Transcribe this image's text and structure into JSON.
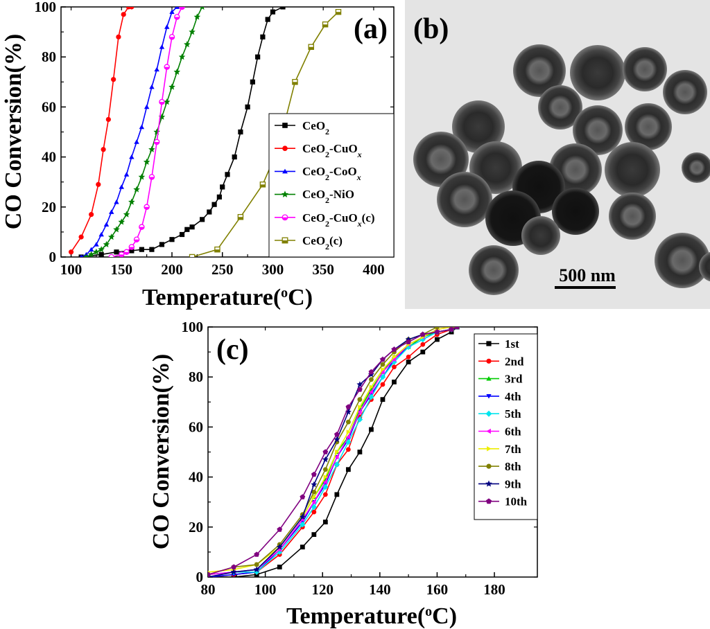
{
  "panel_labels": {
    "a": "(a)",
    "b": "(b)",
    "c": "(c)"
  },
  "axis_text": {
    "a_x_main": "Temperature(",
    "a_x_sup": "o",
    "a_x_end": "C)",
    "a_y": "CO Conversion(%)",
    "c_x_main": "Temperature(",
    "c_x_sup": "o",
    "c_x_end": "C)",
    "c_y": "CO Conversion(%)"
  },
  "legend_a": [
    {
      "base": "CeO",
      "sub": "2",
      "rest": "",
      "rest_italic": "",
      "tail": ""
    },
    {
      "base": "CeO",
      "sub": "2",
      "rest": "-CuO",
      "rest_italic": "x",
      "tail": ""
    },
    {
      "base": "CeO",
      "sub": "2",
      "rest": "-CoO",
      "rest_italic": "x",
      "tail": ""
    },
    {
      "base": "CeO",
      "sub": "2",
      "rest": "-NiO",
      "rest_italic": "",
      "tail": ""
    },
    {
      "base": "CeO",
      "sub": "2",
      "rest": "-CuO",
      "rest_italic": "x",
      "tail": "(c)"
    },
    {
      "base": "CeO",
      "sub": "2",
      "rest": "(c)",
      "rest_italic": "",
      "tail": ""
    }
  ],
  "scale_bar": {
    "label": "500 nm"
  },
  "colors": {
    "s1": "#000000",
    "s2": "#ff0000",
    "s3": "#0000ff",
    "s4": "#008000",
    "s5": "#ff00ff",
    "s6": "#808000",
    "c1": "#000000",
    "c2": "#ff0000",
    "c3": "#00cc00",
    "c4": "#0000ff",
    "c5": "#00e5ee",
    "c6": "#ff00ff",
    "c7": "#eeee00",
    "c8": "#808000",
    "c9": "#000080",
    "c10": "#800080"
  },
  "chart_data": [
    {
      "panel": "(a)",
      "type": "line",
      "xlabel": "Temperature(oC)",
      "ylabel": "CO Conversion(%)",
      "xlim": [
        90,
        420
      ],
      "ylim": [
        0,
        100
      ],
      "xticks": [
        100,
        150,
        200,
        250,
        300,
        350,
        400
      ],
      "yticks": [
        0,
        20,
        40,
        60,
        80,
        100
      ],
      "legend_position": "bottom-right",
      "series": [
        {
          "name": "CeO2",
          "marker": "square",
          "x": [
            110,
            130,
            145,
            160,
            170,
            180,
            190,
            200,
            210,
            215,
            220,
            230,
            237,
            242,
            247,
            250,
            255,
            262,
            268,
            275,
            280,
            285,
            290,
            295,
            300,
            310
          ],
          "y": [
            0,
            1,
            2,
            2.5,
            3,
            3,
            5,
            7,
            9,
            11,
            12,
            15,
            18,
            21,
            24,
            28,
            33,
            40,
            50,
            60,
            70,
            80,
            88,
            95,
            98,
            100
          ]
        },
        {
          "name": "CeO2-CuOx",
          "marker": "circle",
          "x": [
            100,
            110,
            120,
            127,
            132,
            137,
            142,
            147,
            152,
            157,
            160
          ],
          "y": [
            2,
            8,
            17,
            29,
            43,
            55,
            71,
            88,
            97,
            100,
            100
          ]
        },
        {
          "name": "CeO2-CoOx",
          "marker": "triangle",
          "x": [
            110,
            115,
            120,
            125,
            130,
            135,
            140,
            145,
            150,
            155,
            160,
            165,
            170,
            175,
            180,
            185,
            190,
            195,
            200,
            205
          ],
          "y": [
            0,
            1,
            3,
            5,
            9,
            13,
            18,
            22,
            28,
            33,
            40,
            46,
            52,
            60,
            68,
            75,
            84,
            92,
            98,
            100
          ]
        },
        {
          "name": "CeO2-NiO",
          "marker": "star",
          "x": [
            115,
            120,
            125,
            130,
            135,
            140,
            145,
            150,
            155,
            160,
            165,
            170,
            175,
            180,
            185,
            190,
            195,
            200,
            205,
            210,
            215,
            220,
            225,
            230
          ],
          "y": [
            0,
            1,
            2,
            3,
            5,
            8,
            11,
            14,
            17,
            22,
            27,
            32,
            38,
            43,
            50,
            56,
            62,
            68,
            74,
            80,
            85,
            90,
            96,
            100
          ]
        },
        {
          "name": "CeO2-CuOx(c)",
          "marker": "half-circle",
          "x": [
            140,
            150,
            155,
            160,
            165,
            170,
            175,
            180,
            185,
            190,
            195,
            200,
            205,
            210
          ],
          "y": [
            0,
            1,
            2,
            4,
            7,
            12,
            20,
            32,
            46,
            62,
            76,
            88,
            96,
            100
          ]
        },
        {
          "name": "CeO2(c)",
          "marker": "half-square",
          "x": [
            220,
            245,
            268,
            290,
            305,
            322,
            338,
            352,
            365
          ],
          "y": [
            0,
            3,
            16,
            29,
            43,
            70,
            84,
            93,
            98
          ]
        }
      ]
    },
    {
      "panel": "(b)",
      "type": "image",
      "scale_bar": "500 nm"
    },
    {
      "panel": "(c)",
      "type": "line",
      "xlabel": "Temperature(oC)",
      "ylabel": "CO Conversion(%)",
      "xlim": [
        80,
        195
      ],
      "ylim": [
        0,
        100
      ],
      "xticks": [
        80,
        100,
        120,
        140,
        160,
        180
      ],
      "yticks": [
        0,
        20,
        40,
        60,
        80,
        100
      ],
      "legend_position": "right",
      "series": [
        {
          "name": "1st",
          "marker": "square",
          "x": [
            80,
            89,
            97,
            105,
            113,
            117,
            121,
            125,
            129,
            133,
            137,
            141,
            145,
            150,
            155,
            160,
            165,
            167
          ],
          "y": [
            0,
            0,
            1,
            4,
            12,
            17,
            22,
            33,
            43,
            50,
            59,
            71,
            78,
            86,
            90,
            95,
            98,
            100
          ]
        },
        {
          "name": "2nd",
          "marker": "circle",
          "x": [
            80,
            89,
            97,
            105,
            113,
            117,
            121,
            125,
            129,
            133,
            137,
            141,
            145,
            150,
            155,
            160,
            165,
            167
          ],
          "y": [
            0,
            1,
            2,
            9,
            20,
            26,
            33,
            45,
            51,
            64,
            71,
            77,
            84,
            88,
            93,
            97,
            99,
            100
          ]
        },
        {
          "name": "3rd",
          "marker": "triangle",
          "x": [
            80,
            89,
            97,
            105,
            113,
            117,
            121,
            125,
            129,
            133,
            137,
            141,
            145,
            150,
            155,
            160,
            165,
            167
          ],
          "y": [
            1,
            2,
            3,
            12,
            24,
            32,
            39,
            50,
            56,
            67,
            75,
            82,
            88,
            92,
            96,
            98,
            99,
            100
          ]
        },
        {
          "name": "4th",
          "marker": "triangle-down",
          "x": [
            80,
            89,
            97,
            105,
            113,
            117,
            121,
            125,
            129,
            133,
            137,
            141,
            145,
            150,
            155,
            160,
            165,
            167
          ],
          "y": [
            0,
            1,
            2,
            11,
            22,
            30,
            37,
            48,
            55,
            66,
            73,
            80,
            87,
            92,
            95,
            98,
            99,
            100
          ]
        },
        {
          "name": "5th",
          "marker": "diamond",
          "x": [
            80,
            89,
            97,
            105,
            113,
            117,
            121,
            125,
            129,
            133,
            137,
            141,
            145,
            150,
            155,
            160,
            165,
            167
          ],
          "y": [
            1,
            2,
            2,
            10,
            21,
            28,
            36,
            45,
            54,
            63,
            72,
            80,
            86,
            92,
            95,
            98,
            99,
            100
          ]
        },
        {
          "name": "6th",
          "marker": "triangle-left",
          "x": [
            80,
            89,
            97,
            105,
            113,
            117,
            121,
            125,
            129,
            133,
            137,
            141,
            145,
            150,
            155,
            160,
            165,
            167
          ],
          "y": [
            1,
            2,
            3,
            11,
            23,
            30,
            38,
            48,
            56,
            66,
            74,
            82,
            87,
            93,
            96,
            99,
            100,
            100
          ]
        },
        {
          "name": "7th",
          "marker": "triangle-right",
          "x": [
            80,
            89,
            97,
            105,
            113,
            117,
            121,
            125,
            129,
            133,
            137,
            141,
            145,
            150,
            155,
            160,
            165,
            167
          ],
          "y": [
            2,
            3,
            5,
            12,
            24,
            32,
            40,
            50,
            58,
            68,
            76,
            83,
            88,
            93,
            96,
            99,
            100,
            100
          ]
        },
        {
          "name": "8th",
          "marker": "circle",
          "x": [
            80,
            89,
            97,
            105,
            113,
            117,
            121,
            125,
            129,
            133,
            137,
            141,
            145,
            150,
            155,
            160,
            165,
            167
          ],
          "y": [
            1,
            4,
            5,
            13,
            25,
            34,
            43,
            54,
            62,
            71,
            79,
            85,
            90,
            95,
            97,
            100,
            100,
            100
          ]
        },
        {
          "name": "9th",
          "marker": "star",
          "x": [
            80,
            89,
            97,
            105,
            113,
            117,
            121,
            125,
            129,
            133,
            137,
            141,
            145,
            150,
            155,
            160,
            165,
            167
          ],
          "y": [
            0,
            2,
            3,
            12,
            24,
            37,
            47,
            55,
            66,
            77,
            81,
            87,
            91,
            95,
            97,
            98,
            99,
            100
          ]
        },
        {
          "name": "10th",
          "marker": "pentagon",
          "x": [
            80,
            89,
            97,
            105,
            113,
            117,
            121,
            125,
            129,
            133,
            137,
            141,
            145,
            150,
            155,
            160,
            165,
            167
          ],
          "y": [
            1,
            4,
            9,
            19,
            32,
            41,
            50,
            57,
            68,
            75,
            82,
            87,
            91,
            94,
            97,
            98,
            99,
            100
          ]
        }
      ]
    }
  ]
}
